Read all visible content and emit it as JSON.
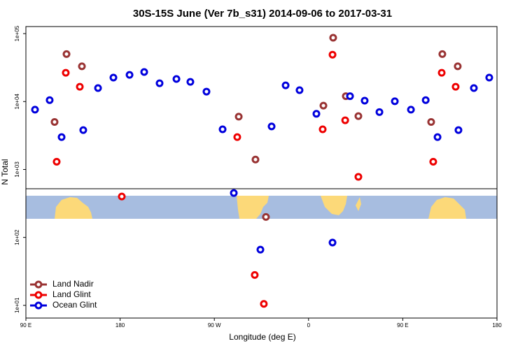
{
  "chart_data": {
    "type": "scatter",
    "title": "30S-15S June (Ver 7b_s31)   2014-09-06 to 2017-03-31",
    "x_label": "Longitude (deg E)",
    "y_label": "N Total",
    "xlim": [
      90,
      540
    ],
    "xticks": [
      {
        "value": 90,
        "label": "90 E"
      },
      180,
      {
        "value": 270,
        "label": "90 W"
      },
      {
        "value": 360,
        "label": "0"
      },
      {
        "value": 450,
        "label": "90 E"
      },
      {
        "value": 540,
        "label": "180"
      }
    ],
    "ylim": [
      6.5,
      127000
    ],
    "log_y": true,
    "yticks": [
      {
        "value": 10,
        "label": "1e+01"
      },
      {
        "value": 100,
        "label": "1e+02"
      },
      {
        "value": 1000,
        "label": "1e+03"
      },
      {
        "value": 10000,
        "label": "1e+04"
      },
      {
        "value": 100000,
        "label": "1e+05"
      }
    ],
    "legend": "lower left",
    "series": [
      {
        "name": "Land Nadir",
        "color": "#993333",
        "x": [
          117.4,
          128.8,
          143.5,
          293.3,
          309.3,
          319.3,
          374.2,
          383.5,
          395.6,
          407.6,
          477.1,
          487.8,
          502.5
        ],
        "values": [
          5000,
          50000,
          33000,
          6000,
          1400,
          200,
          8700,
          87000,
          12000,
          6100,
          5000,
          50000,
          33000
        ]
      },
      {
        "name": "Land Glint",
        "color": "#ee0000",
        "x": [
          119.4,
          128.1,
          141.5,
          181.6,
          291.9,
          308.6,
          317.3,
          373.5,
          382.9,
          395,
          407.6,
          479.1,
          487.2,
          500.5
        ],
        "values": [
          1300,
          26500,
          16500,
          400,
          3000,
          28,
          10.5,
          3900,
          49000,
          5300,
          780,
          1300,
          26500,
          16500
        ]
      },
      {
        "name": "Ocean Glint",
        "color": "#0000dd",
        "x": [
          98.7,
          112.7,
          124.1,
          144.8,
          158.9,
          173.6,
          189,
          203,
          217.7,
          233.8,
          247.1,
          262.5,
          277.9,
          288.6,
          314,
          324.7,
          338.1,
          351.4,
          367.5,
          382.9,
          399.6,
          413.6,
          427.7,
          442.4,
          457.8,
          471.9,
          483.2,
          503.2,
          517.9,
          532.6
        ],
        "values": [
          7600,
          10500,
          3000,
          3800,
          15800,
          22500,
          24700,
          27200,
          18600,
          21500,
          19500,
          14000,
          3900,
          450,
          66,
          4300,
          17300,
          14700,
          6600,
          84,
          12000,
          10300,
          7000,
          10100,
          7600,
          10500,
          3000,
          3800,
          15800,
          22500
        ]
      }
    ]
  }
}
